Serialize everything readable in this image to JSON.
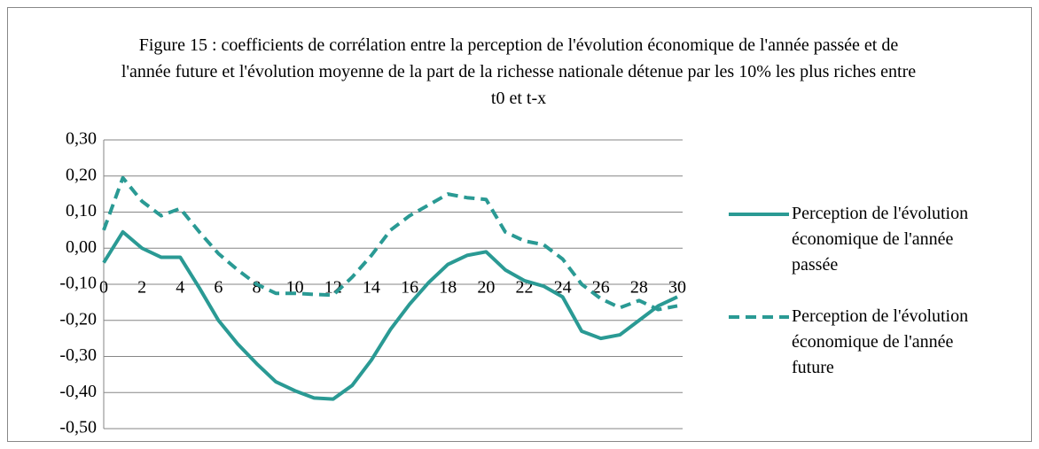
{
  "chart_data": {
    "type": "line",
    "title": "Figure 15 : coefficients de corrélation entre la perception de l'évolution économique de l'année passée et de l'année future et l'évolution moyenne de la part de la richesse nationale détenue par les 10% les plus riches entre t0 et t-x",
    "x": [
      0,
      1,
      2,
      3,
      4,
      5,
      6,
      7,
      8,
      9,
      10,
      11,
      12,
      13,
      14,
      15,
      16,
      17,
      18,
      19,
      20,
      21,
      22,
      23,
      24,
      25,
      26,
      27,
      28,
      29,
      30
    ],
    "series": [
      {
        "name": "Perception de l'évolution économique de l'année passée",
        "color": "#2a9a94",
        "dash": false,
        "values": [
          -0.04,
          0.045,
          0.0,
          -0.025,
          -0.025,
          -0.11,
          -0.2,
          -0.265,
          -0.32,
          -0.37,
          -0.395,
          -0.415,
          -0.418,
          -0.38,
          -0.31,
          -0.225,
          -0.155,
          -0.095,
          -0.045,
          -0.02,
          -0.01,
          -0.06,
          -0.09,
          -0.105,
          -0.135,
          -0.23,
          -0.25,
          -0.24,
          -0.2,
          -0.16,
          -0.135
        ]
      },
      {
        "name": "Perception de l'évolution économique de l'année future",
        "color": "#2a9a94",
        "dash": true,
        "values": [
          0.05,
          0.195,
          0.13,
          0.09,
          0.11,
          0.045,
          -0.015,
          -0.06,
          -0.1,
          -0.125,
          -0.125,
          -0.128,
          -0.13,
          -0.08,
          -0.02,
          0.05,
          0.09,
          0.12,
          0.15,
          0.14,
          0.135,
          0.045,
          0.02,
          0.01,
          -0.03,
          -0.1,
          -0.14,
          -0.165,
          -0.145,
          -0.17,
          -0.16
        ]
      }
    ],
    "xlim": [
      0,
      30
    ],
    "xticks": [
      0,
      2,
      4,
      6,
      8,
      10,
      12,
      14,
      16,
      18,
      20,
      22,
      24,
      26,
      28,
      30
    ],
    "ylim": [
      -0.5,
      0.3
    ],
    "yticks": [
      {
        "value": -0.5,
        "label": "-0,50"
      },
      {
        "value": -0.4,
        "label": "-0,40"
      },
      {
        "value": -0.3,
        "label": "-0,30"
      },
      {
        "value": -0.2,
        "label": "-0,20"
      },
      {
        "value": -0.1,
        "label": "-0,10"
      },
      {
        "value": 0,
        "label": "0,00"
      },
      {
        "value": 0.1,
        "label": "0,10"
      },
      {
        "value": 0.2,
        "label": "0,20"
      },
      {
        "value": 0.3,
        "label": "0,30"
      }
    ],
    "grid": true,
    "legend": "right"
  }
}
